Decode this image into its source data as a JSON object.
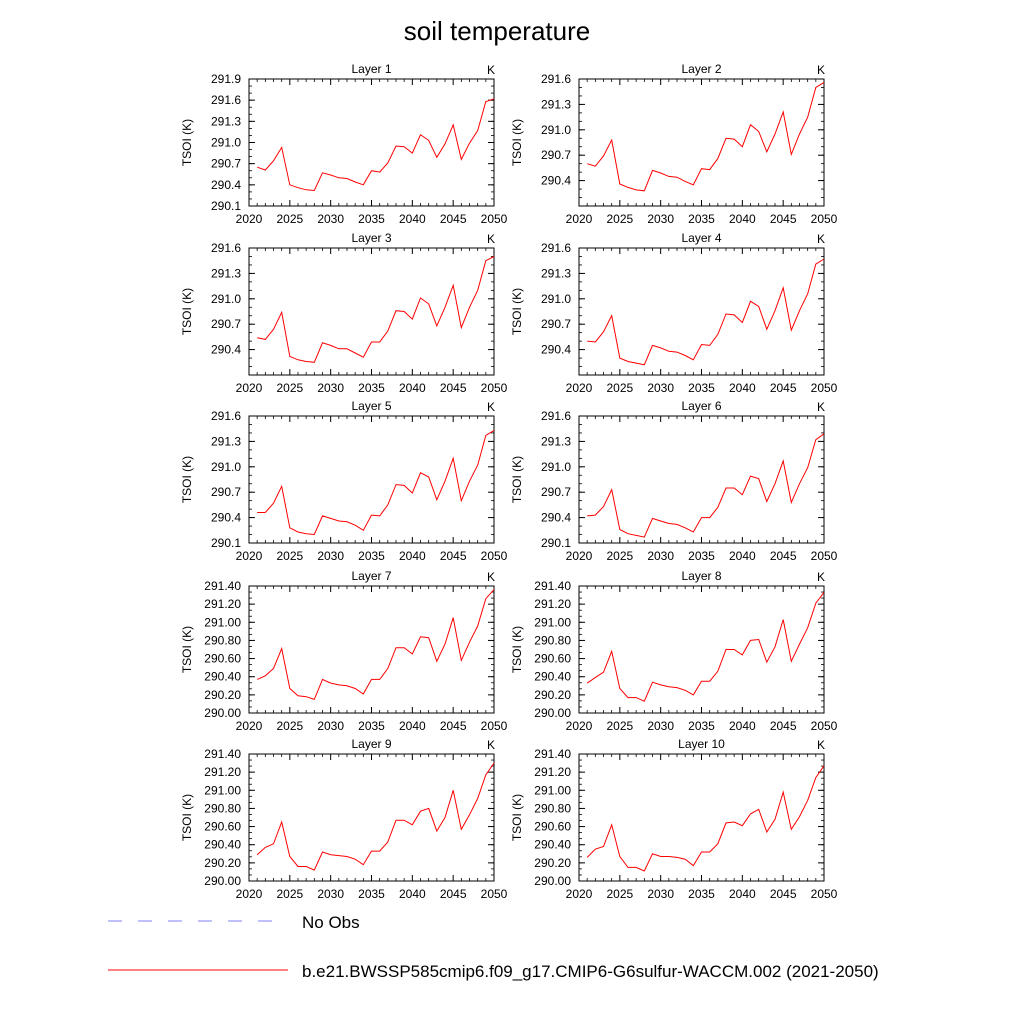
{
  "title": "soil temperature",
  "chart_data": [
    {
      "type": "line",
      "title": "Layer 1",
      "units": "K",
      "ylabel": "TSOI  (K)",
      "x": [
        2021,
        2022,
        2023,
        2024,
        2025,
        2026,
        2027,
        2028,
        2029,
        2030,
        2031,
        2032,
        2033,
        2034,
        2035,
        2036,
        2037,
        2038,
        2039,
        2040,
        2041,
        2042,
        2043,
        2044,
        2045,
        2046,
        2047,
        2048,
        2049,
        2050
      ],
      "xticks": [
        "2020",
        "2025",
        "2030",
        "2035",
        "2040",
        "2045",
        "2050"
      ],
      "xlim": [
        2020,
        2050
      ],
      "yticks": [
        "290.1",
        "290.4",
        "290.7",
        "291.0",
        "291.3",
        "291.6",
        "291.9"
      ],
      "ylim": [
        290.1,
        291.9
      ],
      "series": [
        {
          "name": "b.e21.BWSSP585cmip6.f09_g17.CMIP6-G6sulfur-WACCM.002 (2021-2050)",
          "color": "#ff0000",
          "values": [
            290.65,
            290.61,
            290.74,
            290.93,
            290.4,
            290.36,
            290.33,
            290.32,
            290.57,
            290.54,
            290.5,
            290.49,
            290.44,
            290.4,
            290.6,
            290.58,
            290.71,
            290.95,
            290.94,
            290.85,
            291.11,
            291.03,
            290.79,
            290.98,
            291.25,
            290.76,
            290.99,
            291.17,
            291.58,
            291.62
          ]
        }
      ]
    },
    {
      "type": "line",
      "title": "Layer 2",
      "units": "K",
      "ylabel": "TSOI  (K)",
      "x": [
        2021,
        2022,
        2023,
        2024,
        2025,
        2026,
        2027,
        2028,
        2029,
        2030,
        2031,
        2032,
        2033,
        2034,
        2035,
        2036,
        2037,
        2038,
        2039,
        2040,
        2041,
        2042,
        2043,
        2044,
        2045,
        2046,
        2047,
        2048,
        2049,
        2050
      ],
      "xticks": [
        "2020",
        "2025",
        "2030",
        "2035",
        "2040",
        "2045",
        "2050"
      ],
      "xlim": [
        2020,
        2050
      ],
      "yticks": [
        "290.4",
        "290.7",
        "291.0",
        "291.3",
        "291.6"
      ],
      "ylim": [
        290.1,
        291.6
      ],
      "series": [
        {
          "name": "b.e21.BWSSP585cmip6.f09_g17.CMIP6-G6sulfur-WACCM.002 (2021-2050)",
          "color": "#ff0000",
          "values": [
            290.6,
            290.57,
            290.69,
            290.88,
            290.36,
            290.32,
            290.29,
            290.28,
            290.52,
            290.49,
            290.45,
            290.44,
            290.39,
            290.35,
            290.54,
            290.53,
            290.66,
            290.9,
            290.89,
            290.8,
            291.06,
            290.98,
            290.74,
            290.95,
            291.21,
            290.71,
            290.95,
            291.15,
            291.5,
            291.56
          ]
        }
      ]
    },
    {
      "type": "line",
      "title": "Layer 3",
      "units": "K",
      "ylabel": "TSOI  (K)",
      "x": [
        2021,
        2022,
        2023,
        2024,
        2025,
        2026,
        2027,
        2028,
        2029,
        2030,
        2031,
        2032,
        2033,
        2034,
        2035,
        2036,
        2037,
        2038,
        2039,
        2040,
        2041,
        2042,
        2043,
        2044,
        2045,
        2046,
        2047,
        2048,
        2049,
        2050
      ],
      "xticks": [
        "2020",
        "2025",
        "2030",
        "2035",
        "2040",
        "2045",
        "2050"
      ],
      "xlim": [
        2020,
        2050
      ],
      "yticks": [
        "290.4",
        "290.7",
        "291.0",
        "291.3",
        "291.6"
      ],
      "ylim": [
        290.1,
        291.6
      ],
      "series": [
        {
          "name": "b.e21.BWSSP585cmip6.f09_g17.CMIP6-G6sulfur-WACCM.002 (2021-2050)",
          "color": "#ff0000",
          "values": [
            290.54,
            290.52,
            290.64,
            290.84,
            290.32,
            290.28,
            290.26,
            290.25,
            290.48,
            290.45,
            290.41,
            290.41,
            290.36,
            290.31,
            290.49,
            290.49,
            290.62,
            290.86,
            290.85,
            290.76,
            291.01,
            290.94,
            290.68,
            290.9,
            291.16,
            290.66,
            290.9,
            291.1,
            291.45,
            291.5
          ]
        }
      ]
    },
    {
      "type": "line",
      "title": "Layer 4",
      "units": "K",
      "ylabel": "TSOI  (K)",
      "x": [
        2021,
        2022,
        2023,
        2024,
        2025,
        2026,
        2027,
        2028,
        2029,
        2030,
        2031,
        2032,
        2033,
        2034,
        2035,
        2036,
        2037,
        2038,
        2039,
        2040,
        2041,
        2042,
        2043,
        2044,
        2045,
        2046,
        2047,
        2048,
        2049,
        2050
      ],
      "xticks": [
        "2020",
        "2025",
        "2030",
        "2035",
        "2040",
        "2045",
        "2050"
      ],
      "xlim": [
        2020,
        2050
      ],
      "yticks": [
        "290.4",
        "290.7",
        "291.0",
        "291.3",
        "291.6"
      ],
      "ylim": [
        290.1,
        291.6
      ],
      "series": [
        {
          "name": "b.e21.BWSSP585cmip6.f09_g17.CMIP6-G6sulfur-WACCM.002 (2021-2050)",
          "color": "#ff0000",
          "values": [
            290.5,
            290.49,
            290.61,
            290.8,
            290.3,
            290.26,
            290.24,
            290.22,
            290.45,
            290.42,
            290.38,
            290.37,
            290.33,
            290.28,
            290.46,
            290.45,
            290.58,
            290.82,
            290.81,
            290.72,
            290.97,
            290.91,
            290.64,
            290.86,
            291.13,
            290.63,
            290.86,
            291.06,
            291.41,
            291.47
          ]
        }
      ]
    },
    {
      "type": "line",
      "title": "Layer 5",
      "units": "K",
      "ylabel": "TSOI  (K)",
      "x": [
        2021,
        2022,
        2023,
        2024,
        2025,
        2026,
        2027,
        2028,
        2029,
        2030,
        2031,
        2032,
        2033,
        2034,
        2035,
        2036,
        2037,
        2038,
        2039,
        2040,
        2041,
        2042,
        2043,
        2044,
        2045,
        2046,
        2047,
        2048,
        2049,
        2050
      ],
      "xticks": [
        "2020",
        "2025",
        "2030",
        "2035",
        "2040",
        "2045",
        "2050"
      ],
      "xlim": [
        2020,
        2050
      ],
      "yticks": [
        "290.1",
        "290.4",
        "290.7",
        "291.0",
        "291.3",
        "291.6"
      ],
      "ylim": [
        290.1,
        291.6
      ],
      "series": [
        {
          "name": "b.e21.BWSSP585cmip6.f09_g17.CMIP6-G6sulfur-WACCM.002 (2021-2050)",
          "color": "#ff0000",
          "values": [
            290.46,
            290.46,
            290.57,
            290.77,
            290.28,
            290.23,
            290.21,
            290.2,
            290.42,
            290.39,
            290.36,
            290.35,
            290.31,
            290.25,
            290.43,
            290.42,
            290.55,
            290.79,
            290.78,
            290.69,
            290.93,
            290.88,
            290.61,
            290.83,
            291.1,
            290.6,
            290.83,
            291.02,
            291.37,
            291.43
          ]
        }
      ]
    },
    {
      "type": "line",
      "title": "Layer 6",
      "units": "K",
      "ylabel": "TSOI  (K)",
      "x": [
        2021,
        2022,
        2023,
        2024,
        2025,
        2026,
        2027,
        2028,
        2029,
        2030,
        2031,
        2032,
        2033,
        2034,
        2035,
        2036,
        2037,
        2038,
        2039,
        2040,
        2041,
        2042,
        2043,
        2044,
        2045,
        2046,
        2047,
        2048,
        2049,
        2050
      ],
      "xticks": [
        "2020",
        "2025",
        "2030",
        "2035",
        "2040",
        "2045",
        "2050"
      ],
      "xlim": [
        2020,
        2050
      ],
      "yticks": [
        "290.1",
        "290.4",
        "290.7",
        "291.0",
        "291.3",
        "291.6"
      ],
      "ylim": [
        290.1,
        291.6
      ],
      "series": [
        {
          "name": "b.e21.BWSSP585cmip6.f09_g17.CMIP6-G6sulfur-WACCM.002 (2021-2050)",
          "color": "#ff0000",
          "values": [
            290.42,
            290.43,
            290.53,
            290.73,
            290.26,
            290.21,
            290.19,
            290.17,
            290.39,
            290.36,
            290.33,
            290.32,
            290.28,
            290.23,
            290.4,
            290.4,
            290.52,
            290.75,
            290.75,
            290.67,
            290.89,
            290.86,
            290.59,
            290.8,
            291.07,
            290.58,
            290.8,
            290.99,
            291.32,
            291.39
          ]
        }
      ]
    },
    {
      "type": "line",
      "title": "Layer 7",
      "units": "K",
      "ylabel": "TSOI  (K)",
      "x": [
        2021,
        2022,
        2023,
        2024,
        2025,
        2026,
        2027,
        2028,
        2029,
        2030,
        2031,
        2032,
        2033,
        2034,
        2035,
        2036,
        2037,
        2038,
        2039,
        2040,
        2041,
        2042,
        2043,
        2044,
        2045,
        2046,
        2047,
        2048,
        2049,
        2050
      ],
      "xticks": [
        "2020",
        "2025",
        "2030",
        "2035",
        "2040",
        "2045",
        "2050"
      ],
      "xlim": [
        2020,
        2050
      ],
      "yticks": [
        "290.00",
        "290.20",
        "290.40",
        "290.60",
        "290.80",
        "291.00",
        "291.20",
        "291.40"
      ],
      "ylim": [
        290.0,
        291.4
      ],
      "series": [
        {
          "name": "b.e21.BWSSP585cmip6.f09_g17.CMIP6-G6sulfur-WACCM.002 (2021-2050)",
          "color": "#ff0000",
          "values": [
            290.37,
            290.41,
            290.49,
            290.71,
            290.27,
            290.19,
            290.18,
            290.15,
            290.37,
            290.33,
            290.31,
            290.3,
            290.27,
            290.21,
            290.37,
            290.37,
            290.49,
            290.72,
            290.72,
            290.65,
            290.84,
            290.83,
            290.57,
            290.76,
            291.05,
            290.58,
            290.78,
            290.96,
            291.26,
            291.36
          ]
        }
      ]
    },
    {
      "type": "line",
      "title": "Layer 8",
      "units": "K",
      "ylabel": "TSOI  (K)",
      "x": [
        2021,
        2022,
        2023,
        2024,
        2025,
        2026,
        2027,
        2028,
        2029,
        2030,
        2031,
        2032,
        2033,
        2034,
        2035,
        2036,
        2037,
        2038,
        2039,
        2040,
        2041,
        2042,
        2043,
        2044,
        2045,
        2046,
        2047,
        2048,
        2049,
        2050
      ],
      "xticks": [
        "2020",
        "2025",
        "2030",
        "2035",
        "2040",
        "2045",
        "2050"
      ],
      "xlim": [
        2020,
        2050
      ],
      "yticks": [
        "290.00",
        "290.20",
        "290.40",
        "290.60",
        "290.80",
        "291.00",
        "291.20",
        "291.40"
      ],
      "ylim": [
        290.0,
        291.4
      ],
      "series": [
        {
          "name": "b.e21.BWSSP585cmip6.f09_g17.CMIP6-G6sulfur-WACCM.002 (2021-2050)",
          "color": "#ff0000",
          "values": [
            290.33,
            290.39,
            290.45,
            290.68,
            290.27,
            290.17,
            290.17,
            290.13,
            290.34,
            290.31,
            290.29,
            290.28,
            290.25,
            290.2,
            290.35,
            290.35,
            290.46,
            290.7,
            290.7,
            290.64,
            290.8,
            290.81,
            290.56,
            290.73,
            291.03,
            290.57,
            290.76,
            290.94,
            291.21,
            291.33
          ]
        }
      ]
    },
    {
      "type": "line",
      "title": "Layer 9",
      "units": "K",
      "ylabel": "TSOI  (K)",
      "x": [
        2021,
        2022,
        2023,
        2024,
        2025,
        2026,
        2027,
        2028,
        2029,
        2030,
        2031,
        2032,
        2033,
        2034,
        2035,
        2036,
        2037,
        2038,
        2039,
        2040,
        2041,
        2042,
        2043,
        2044,
        2045,
        2046,
        2047,
        2048,
        2049,
        2050
      ],
      "xticks": [
        "2020",
        "2025",
        "2030",
        "2035",
        "2040",
        "2045",
        "2050"
      ],
      "xlim": [
        2020,
        2050
      ],
      "yticks": [
        "290.00",
        "290.20",
        "290.40",
        "290.60",
        "290.80",
        "291.00",
        "291.20",
        "291.40"
      ],
      "ylim": [
        290.0,
        291.4
      ],
      "series": [
        {
          "name": "b.e21.BWSSP585cmip6.f09_g17.CMIP6-G6sulfur-WACCM.002 (2021-2050)",
          "color": "#ff0000",
          "values": [
            290.29,
            290.37,
            290.41,
            290.65,
            290.27,
            290.16,
            290.16,
            290.12,
            290.32,
            290.29,
            290.28,
            290.27,
            290.24,
            290.18,
            290.33,
            290.33,
            290.43,
            290.67,
            290.67,
            290.62,
            290.77,
            290.8,
            290.55,
            290.7,
            291.0,
            290.57,
            290.73,
            290.91,
            291.17,
            291.3
          ]
        }
      ]
    },
    {
      "type": "line",
      "title": "Layer 10",
      "units": "K",
      "ylabel": "TSOI  (K)",
      "x": [
        2021,
        2022,
        2023,
        2024,
        2025,
        2026,
        2027,
        2028,
        2029,
        2030,
        2031,
        2032,
        2033,
        2034,
        2035,
        2036,
        2037,
        2038,
        2039,
        2040,
        2041,
        2042,
        2043,
        2044,
        2045,
        2046,
        2047,
        2048,
        2049,
        2050
      ],
      "xticks": [
        "2020",
        "2025",
        "2030",
        "2035",
        "2040",
        "2045",
        "2050"
      ],
      "xlim": [
        2020,
        2050
      ],
      "yticks": [
        "290.00",
        "290.20",
        "290.40",
        "290.60",
        "290.80",
        "291.00",
        "291.20",
        "291.40"
      ],
      "ylim": [
        290.0,
        291.4
      ],
      "series": [
        {
          "name": "b.e21.BWSSP585cmip6.f09_g17.CMIP6-G6sulfur-WACCM.002 (2021-2050)",
          "color": "#ff0000",
          "values": [
            290.26,
            290.35,
            290.38,
            290.62,
            290.27,
            290.15,
            290.15,
            290.11,
            290.3,
            290.27,
            290.27,
            290.26,
            290.24,
            290.17,
            290.32,
            290.32,
            290.41,
            290.64,
            290.65,
            290.61,
            290.74,
            290.79,
            290.54,
            290.68,
            290.98,
            290.57,
            290.71,
            290.89,
            291.14,
            291.27
          ]
        }
      ]
    }
  ],
  "legend": {
    "placement": "bottom",
    "items": [
      {
        "label": "No Obs",
        "style": "dashed",
        "color": "#8080ff"
      },
      {
        "label": "b.e21.BWSSP585cmip6.f09_g17.CMIP6-G6sulfur-WACCM.002 (2021-2050)",
        "style": "solid",
        "color": "#ff0000"
      }
    ]
  }
}
